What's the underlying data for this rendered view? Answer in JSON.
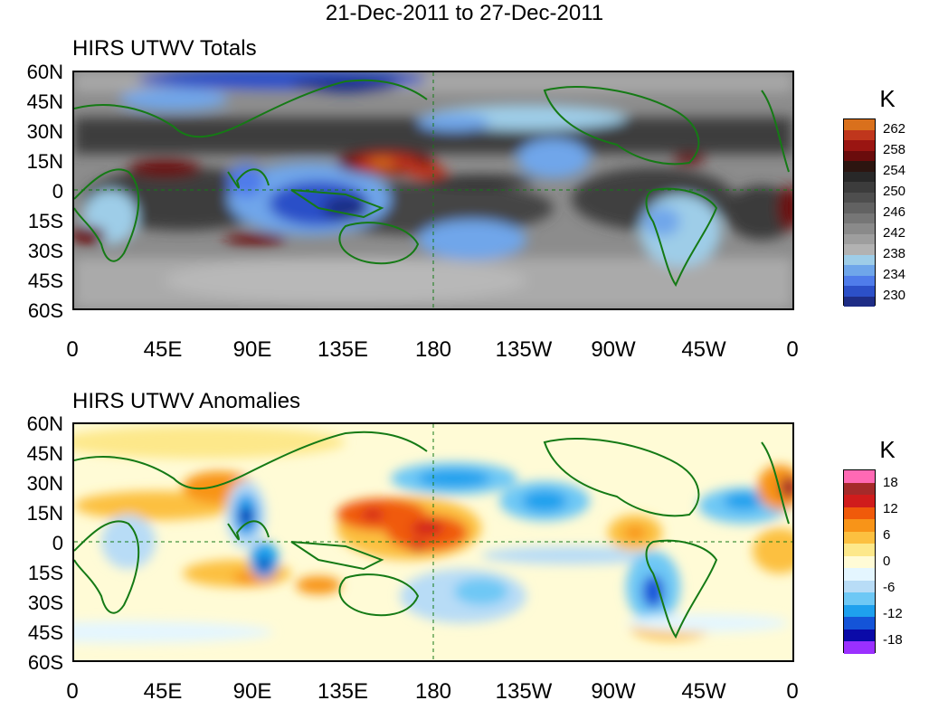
{
  "title": "21-Dec-2011 to 27-Dec-2011",
  "lat_labels": [
    "60N",
    "45N",
    "30N",
    "15N",
    "0",
    "15S",
    "30S",
    "45S",
    "60S"
  ],
  "lon_labels": [
    "0",
    "45E",
    "90E",
    "135E",
    "180",
    "135W",
    "90W",
    "45W",
    "0"
  ],
  "totals": {
    "title": "HIRS UTWV Totals",
    "unit": "K",
    "colors": [
      "#d9701c",
      "#c0361c",
      "#9a1512",
      "#6a0c0c",
      "#2c1510",
      "#282828",
      "#3c3c3c",
      "#4e4e4e",
      "#626262",
      "#767676",
      "#8a8a8a",
      "#9e9e9e",
      "#b2b2b2",
      "#9ecde8",
      "#6fa6ea",
      "#4f7cea",
      "#2c50c8",
      "#1e2d86"
    ],
    "labels": [
      "262",
      "258",
      "254",
      "250",
      "246",
      "242",
      "238",
      "234",
      "230"
    ]
  },
  "anomalies": {
    "title": "HIRS UTWV Anomalies",
    "unit": "K",
    "colors": [
      "#ff69b4",
      "#a52a2a",
      "#d01c1c",
      "#f05a0a",
      "#f89418",
      "#fcc040",
      "#fde88a",
      "#fffbd6",
      "#e4f6ff",
      "#b8dcf6",
      "#6ec8f5",
      "#1ea0ee",
      "#1454d8",
      "#0a0aa8",
      "#9b30ff"
    ],
    "labels": [
      "18",
      "12",
      "6",
      "0",
      "-6",
      "-12",
      "-18"
    ]
  }
}
